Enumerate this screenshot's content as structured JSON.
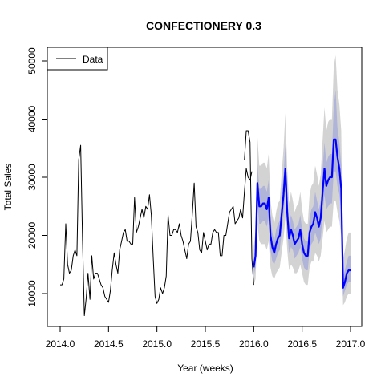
{
  "chart_data": {
    "type": "line",
    "title": "CONFECTIONERY 0.3",
    "xlabel": "Year (weeks)",
    "ylabel": "Total Sales",
    "xlim": [
      2014.0,
      2017.0
    ],
    "ylim": [
      6000,
      50000
    ],
    "x_ticks": [
      2014.0,
      2014.5,
      2015.0,
      2015.5,
      2016.0,
      2016.5,
      2017.0
    ],
    "x_tick_labels": [
      "2014.0",
      "2014.5",
      "2015.0",
      "2015.5",
      "2016.0",
      "2016.5",
      "2017.0"
    ],
    "y_ticks": [
      10000,
      20000,
      30000,
      40000,
      50000
    ],
    "y_tick_labels": [
      "10000",
      "20000",
      "30000",
      "40000",
      "50000"
    ],
    "legend": {
      "position": "top-left",
      "entries": [
        {
          "label": "Data",
          "color": "#000000"
        }
      ]
    },
    "colors": {
      "data": "#000000",
      "forecast": "#0000ff",
      "band_outer": "#d3d3d3",
      "band_inner": "#b0b4d8"
    },
    "series": [
      {
        "name": "Data",
        "x": [
          2014.0,
          2014.019,
          2014.038,
          2014.058,
          2014.077,
          2014.096,
          2014.115,
          2014.135,
          2014.154,
          2014.173,
          2014.192,
          2014.212,
          2014.231,
          2014.25,
          2014.269,
          2014.288,
          2014.308,
          2014.327,
          2014.346,
          2014.365,
          2014.385,
          2014.404,
          2014.423,
          2014.442,
          2014.462,
          2014.481,
          2014.5,
          2014.519,
          2014.538,
          2014.558,
          2014.577,
          2014.596,
          2014.615,
          2014.635,
          2014.654,
          2014.673,
          2014.692,
          2014.712,
          2014.731,
          2014.75,
          2014.769,
          2014.788,
          2014.808,
          2014.827,
          2014.846,
          2014.865,
          2014.885,
          2014.904,
          2014.923,
          2014.942,
          2014.962,
          2014.981,
          2015.0,
          2015.019,
          2015.038,
          2015.058,
          2015.077,
          2015.096,
          2015.115,
          2015.135,
          2015.154,
          2015.173,
          2015.192,
          2015.212,
          2015.231,
          2015.25,
          2015.269,
          2015.288,
          2015.308,
          2015.327,
          2015.346,
          2015.365,
          2015.385,
          2015.404,
          2015.423,
          2015.442,
          2015.462,
          2015.481,
          2015.5,
          2015.519,
          2015.538,
          2015.558,
          2015.577,
          2015.596,
          2015.615,
          2015.635,
          2015.654,
          2015.673,
          2015.692,
          2015.712,
          2015.731,
          2015.75,
          2015.769,
          2015.788,
          2015.808,
          2015.827,
          2015.846,
          2015.865,
          2015.885,
          2015.904,
          2015.923,
          2015.942,
          2015.962,
          2015.981
        ],
        "values": [
          11500,
          11500,
          12500,
          22000,
          15000,
          13500,
          14000,
          16500,
          17500,
          16500,
          33000,
          35500,
          19500,
          6200,
          9200,
          13500,
          9000,
          16500,
          12500,
          13500,
          13500,
          12500,
          11500,
          11000,
          9500,
          9000,
          8500,
          10500,
          14000,
          17000,
          15000,
          13500,
          17500,
          19000,
          20500,
          21000,
          19000,
          19000,
          18500,
          18500,
          26500,
          20500,
          21500,
          23000,
          24500,
          23000,
          25000,
          24500,
          27000,
          23500,
          16000,
          9500,
          8300,
          9000,
          11000,
          10000,
          11000,
          13000,
          23500,
          20000,
          20000,
          21000,
          21000,
          20500,
          22000,
          20000,
          19000,
          17500,
          16000,
          18500,
          19000,
          23500,
          29000,
          21500,
          20500,
          17500,
          17000,
          20500,
          19000,
          17500,
          18500,
          18500,
          20500,
          21000,
          20500,
          20500,
          16500,
          16500,
          20000,
          20000,
          22000,
          24000,
          24500,
          25000,
          22000,
          22500,
          23000,
          24500,
          23000,
          27500,
          31500,
          30000,
          29500,
          31000
        ]
      },
      {
        "name": "",
        "x": [
          2015.904,
          2015.923,
          2015.942,
          2015.962,
          2015.981,
          2016.0
        ],
        "values": [
          33000,
          38000,
          38000,
          36000,
          16000,
          11500
        ]
      },
      {
        "name": "",
        "x": [
          2016.0,
          2016.019,
          2016.038,
          2016.058,
          2016.077,
          2016.096,
          2016.115,
          2016.135,
          2016.154,
          2016.173,
          2016.192,
          2016.212,
          2016.231,
          2016.25,
          2016.269,
          2016.288,
          2016.308,
          2016.327,
          2016.346,
          2016.365,
          2016.385,
          2016.404,
          2016.423,
          2016.442,
          2016.462,
          2016.481,
          2016.5,
          2016.519,
          2016.538,
          2016.558,
          2016.577,
          2016.596,
          2016.615,
          2016.635,
          2016.654,
          2016.673,
          2016.692,
          2016.712,
          2016.731,
          2016.75,
          2016.769,
          2016.788,
          2016.808,
          2016.827,
          2016.846,
          2016.865,
          2016.885,
          2016.904,
          2016.923,
          2016.942,
          2016.962,
          2016.981,
          2017.0
        ],
        "values": [
          14500,
          16500,
          29000,
          25000,
          25000,
          25500,
          25500,
          24500,
          26500,
          20000,
          18000,
          17000,
          18500,
          19500,
          20000,
          23500,
          27000,
          31500,
          24000,
          19500,
          21000,
          20000,
          18500,
          19000,
          19500,
          21000,
          18500,
          17000,
          16500,
          16500,
          20500,
          21500,
          22000,
          24000,
          23000,
          21500,
          23000,
          27500,
          31500,
          28500,
          29500,
          30000,
          30000,
          36500,
          36500,
          33500,
          31500,
          28000,
          11000,
          12000,
          13500,
          14000,
          14000
        ]
      }
    ],
    "bands": {
      "x": [
        2016.0,
        2016.019,
        2016.038,
        2016.058,
        2016.077,
        2016.096,
        2016.115,
        2016.135,
        2016.154,
        2016.173,
        2016.192,
        2016.212,
        2016.231,
        2016.25,
        2016.269,
        2016.288,
        2016.308,
        2016.327,
        2016.346,
        2016.365,
        2016.385,
        2016.404,
        2016.423,
        2016.442,
        2016.462,
        2016.481,
        2016.5,
        2016.519,
        2016.538,
        2016.558,
        2016.577,
        2016.596,
        2016.615,
        2016.635,
        2016.654,
        2016.673,
        2016.692,
        2016.712,
        2016.731,
        2016.75,
        2016.769,
        2016.788,
        2016.808,
        2016.827,
        2016.846,
        2016.865,
        2016.885,
        2016.904,
        2016.923,
        2016.942,
        2016.962,
        2016.981,
        2017.0
      ],
      "outer_lower": [
        11500,
        12500,
        22000,
        19000,
        18500,
        18500,
        18500,
        17500,
        19000,
        14500,
        13000,
        12500,
        13500,
        14000,
        14500,
        17000,
        19500,
        23000,
        17500,
        14000,
        15000,
        14500,
        13500,
        13500,
        14000,
        15000,
        13500,
        12000,
        11500,
        11500,
        14500,
        15500,
        15500,
        17000,
        16500,
        15500,
        16500,
        19500,
        22500,
        20500,
        21000,
        21500,
        21500,
        26000,
        26000,
        24000,
        22500,
        20000,
        8000,
        8500,
        9500,
        10000,
        10000
      ],
      "outer_upper": [
        18000,
        21000,
        37000,
        32000,
        32000,
        32500,
        32500,
        31500,
        34000,
        26000,
        23500,
        22000,
        24000,
        25500,
        26000,
        30500,
        35000,
        41000,
        31500,
        25500,
        27500,
        26000,
        24000,
        25000,
        25500,
        27500,
        24500,
        22500,
        22000,
        22000,
        27000,
        28500,
        29000,
        32000,
        30500,
        28500,
        30500,
        36500,
        42000,
        38000,
        39500,
        40000,
        40000,
        49000,
        51000,
        45000,
        42500,
        38000,
        16000,
        17500,
        19500,
        20500,
        20500
      ],
      "inner_lower": [
        13000,
        14500,
        25500,
        22000,
        22000,
        22500,
        22500,
        21500,
        23000,
        17500,
        15500,
        15000,
        16000,
        17000,
        17500,
        20500,
        23500,
        27500,
        21000,
        17000,
        18000,
        17500,
        16000,
        16500,
        17000,
        18000,
        16000,
        14500,
        14000,
        14000,
        17500,
        18500,
        19000,
        20500,
        19500,
        18500,
        19500,
        23500,
        27000,
        24500,
        25000,
        25500,
        25500,
        31000,
        31000,
        28500,
        27000,
        24000,
        9500,
        10500,
        11500,
        12000,
        12000
      ],
      "inner_upper": [
        16000,
        18500,
        32500,
        28000,
        28000,
        28500,
        28500,
        27500,
        29500,
        22500,
        20500,
        19000,
        21000,
        22000,
        22500,
        26500,
        30500,
        35500,
        27000,
        22000,
        23500,
        22500,
        21000,
        21500,
        22000,
        23500,
        21000,
        19500,
        19000,
        19000,
        23000,
        24500,
        25000,
        27500,
        26000,
        24500,
        26000,
        31500,
        36000,
        32500,
        33500,
        34000,
        34000,
        42000,
        45000,
        38500,
        36000,
        32000,
        13000,
        14000,
        15500,
        16500,
        16500
      ]
    }
  }
}
